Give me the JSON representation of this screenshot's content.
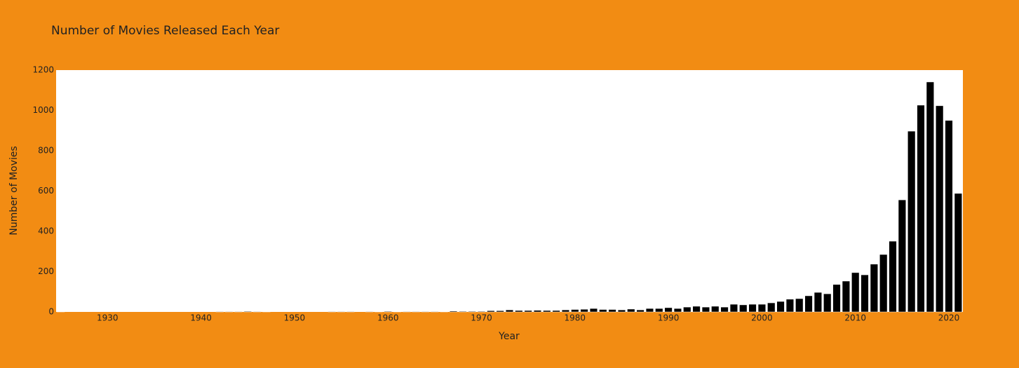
{
  "chart_data": {
    "type": "bar",
    "title": "Number of Movies Released Each Year",
    "x_label": "Year",
    "y_label": "Number of Movies",
    "color": "#000000",
    "x": [
      1925,
      1926,
      1927,
      1928,
      1929,
      1930,
      1931,
      1932,
      1933,
      1934,
      1935,
      1936,
      1937,
      1938,
      1939,
      1940,
      1941,
      1942,
      1943,
      1944,
      1945,
      1946,
      1947,
      1948,
      1949,
      1950,
      1951,
      1952,
      1953,
      1954,
      1955,
      1956,
      1957,
      1958,
      1959,
      1960,
      1961,
      1962,
      1963,
      1964,
      1965,
      1966,
      1967,
      1968,
      1969,
      1970,
      1971,
      1972,
      1973,
      1974,
      1975,
      1976,
      1977,
      1978,
      1979,
      1980,
      1981,
      1982,
      1983,
      1984,
      1985,
      1986,
      1987,
      1988,
      1989,
      1990,
      1991,
      1992,
      1993,
      1994,
      1995,
      1996,
      1997,
      1998,
      1999,
      2000,
      2001,
      2002,
      2003,
      2004,
      2005,
      2006,
      2007,
      2008,
      2009,
      2010,
      2011,
      2012,
      2013,
      2014,
      2015,
      2016,
      2017,
      2018,
      2019,
      2020,
      2021
    ],
    "values": [
      1,
      0,
      0,
      0,
      0,
      0,
      0,
      0,
      0,
      0,
      0,
      0,
      0,
      0,
      0,
      0,
      0,
      2,
      2,
      2,
      3,
      2,
      1,
      0,
      0,
      0,
      0,
      0,
      0,
      2,
      2,
      2,
      0,
      2,
      1,
      3,
      1,
      2,
      2,
      2,
      2,
      1,
      4,
      3,
      3,
      3,
      6,
      6,
      10,
      7,
      7,
      8,
      7,
      7,
      10,
      12,
      13,
      17,
      12,
      12,
      10,
      14,
      10,
      17,
      17,
      21,
      17,
      24,
      28,
      24,
      28,
      24,
      38,
      35,
      38,
      38,
      45,
      52,
      63,
      66,
      80,
      97,
      90,
      136,
      153,
      195,
      184,
      237,
      285,
      351,
      556,
      897,
      1026,
      1141,
      1023,
      950,
      588
    ],
    "xlim": [
      1924.5,
      2021.5
    ],
    "xticks": [
      1930,
      1940,
      1950,
      1960,
      1970,
      1980,
      1990,
      2000,
      2010,
      2020
    ],
    "ylim": [
      0,
      1200
    ],
    "yticks": [
      0,
      200,
      400,
      600,
      800,
      1000,
      1200
    ]
  }
}
